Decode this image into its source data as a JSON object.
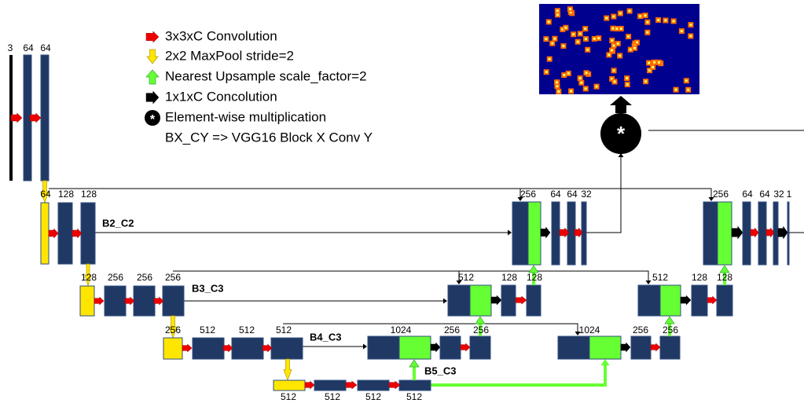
{
  "legend": [
    "3x3xC Convolution",
    "2x2 MaxPool stride=2",
    "Nearest Upsample scale_factor=2",
    "1x1xC Concolution",
    "Element-wise multiplication",
    "BX_CY => VGG16 Block X Conv Y"
  ],
  "block_labels": [
    "B2_C2",
    "B3_C3",
    "B4_C3",
    "B5_C3"
  ],
  "channel_labels": [
    "3",
    "64",
    "64",
    "64",
    "128",
    "128",
    "256",
    "64",
    "64",
    "32",
    "256",
    "64",
    "64",
    "32",
    "1",
    "128",
    "256",
    "256",
    "256",
    "512",
    "128",
    "128",
    "512",
    "128",
    "128",
    "256",
    "512",
    "512",
    "512",
    "1024",
    "256",
    "256",
    "1024",
    "256",
    "256",
    "512",
    "512",
    "512",
    "512"
  ]
}
